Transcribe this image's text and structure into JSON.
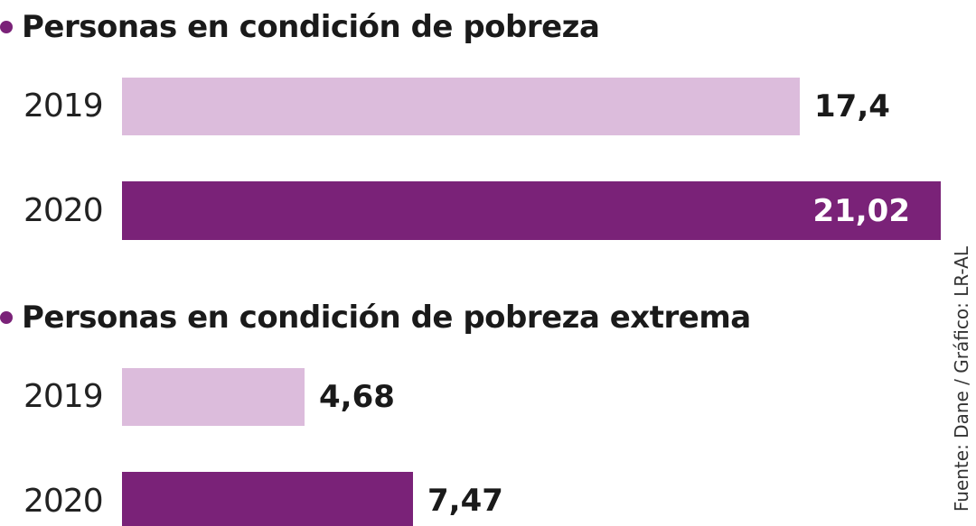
{
  "colors": {
    "accent": "#7a2278",
    "light": "#dcbcdc",
    "dark": "#7a2278"
  },
  "chart_data": [
    {
      "type": "bar",
      "orientation": "horizontal",
      "title": "Personas en condición de pobreza",
      "categories": [
        "2019",
        "2020"
      ],
      "values": [
        17.4,
        21.02
      ],
      "value_labels": [
        "17,4",
        "21,02"
      ],
      "xlim": [
        0,
        21.02
      ]
    },
    {
      "type": "bar",
      "orientation": "horizontal",
      "title": "Personas en condición de pobreza extrema",
      "categories": [
        "2019",
        "2020"
      ],
      "values": [
        4.68,
        7.47
      ],
      "value_labels": [
        "4,68",
        "7,47"
      ],
      "xlim": [
        0,
        21.02
      ]
    }
  ],
  "source": "Fuente: Dane / Gráfico: LR-AL"
}
